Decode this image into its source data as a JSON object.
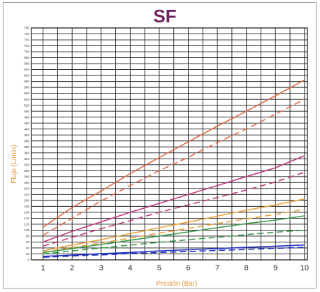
{
  "chart_data": {
    "type": "line",
    "title": "SF",
    "xlabel": "Presión (Bar)",
    "ylabel": "Flujo (L/min)",
    "xlim": [
      0.6,
      10.1
    ],
    "ylim": [
      0,
      780
    ],
    "x": [
      1,
      2,
      3,
      4,
      5,
      6,
      7,
      8,
      9,
      10
    ],
    "x_ticks": [
      "1",
      "2",
      "3",
      "4",
      "5",
      "6",
      "7",
      "8",
      "9",
      "10"
    ],
    "y_ticks": [
      "0",
      "20",
      "40",
      "60",
      "80",
      "100",
      "120",
      "140",
      "160",
      "180",
      "200",
      "220",
      "240",
      "260",
      "280",
      "300",
      "320",
      "340",
      "360",
      "380",
      "400",
      "420",
      "440",
      "460",
      "480",
      "500",
      "520",
      "540",
      "560",
      "580",
      "600",
      "620",
      "640",
      "660",
      "680",
      "700",
      "720",
      "740",
      "760",
      "780"
    ],
    "grid": true,
    "series": [
      {
        "color": "#e06a48",
        "dash": false,
        "values": [
          110,
          176,
          232,
          290,
          344,
          397,
          450,
          500,
          552,
          605
        ]
      },
      {
        "color": "#e06a48",
        "dash": true,
        "values": [
          83,
          140,
          198,
          250,
          300,
          345,
          395,
          440,
          490,
          540
        ]
      },
      {
        "color": "#c03a7e",
        "dash": false,
        "values": [
          60,
          96,
          128,
          160,
          190,
          220,
          250,
          280,
          310,
          350
        ]
      },
      {
        "color": "#c03a7e",
        "dash": true,
        "values": [
          46,
          76,
          105,
          132,
          160,
          185,
          210,
          235,
          262,
          295
        ]
      },
      {
        "color": "#e8a23c",
        "dash": false,
        "values": [
          30,
          50,
          68,
          88,
          108,
          127,
          147,
          167,
          185,
          205
        ]
      },
      {
        "color": "#e8a23c",
        "dash": true,
        "values": [
          25,
          41,
          57,
          73,
          90,
          106,
          122,
          138,
          153,
          170
        ]
      },
      {
        "color": "#3a9a4a",
        "dash": false,
        "values": [
          25,
          38,
          52,
          66,
          80,
          94,
          108,
          122,
          134,
          148
        ]
      },
      {
        "color": "#3a9a4a",
        "dash": true,
        "values": [
          20,
          30,
          40,
          50,
          59,
          68,
          76,
          85,
          93,
          100
        ]
      },
      {
        "color": "#2030c0",
        "dash": false,
        "values": [
          12,
          16,
          21,
          25,
          30,
          34,
          38,
          42,
          46,
          50
        ]
      },
      {
        "color": "#2030c0",
        "dash": true,
        "values": [
          9,
          13,
          17,
          21,
          25,
          28,
          32,
          35,
          39,
          42
        ]
      }
    ]
  }
}
